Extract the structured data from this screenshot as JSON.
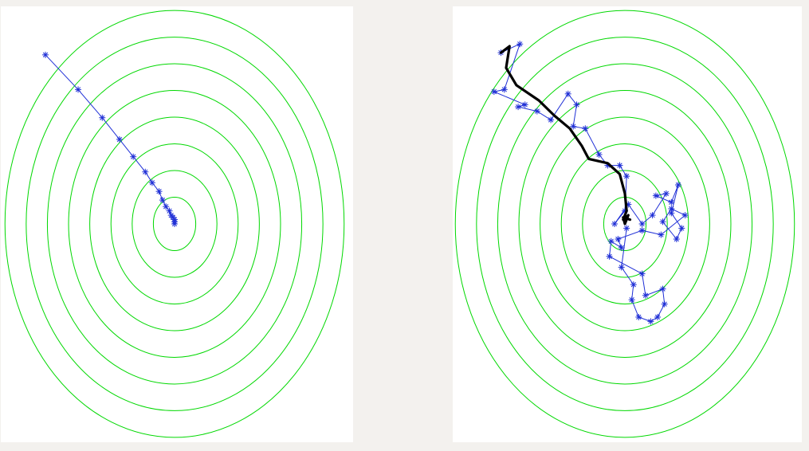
{
  "colors": {
    "background": "#f3f1ee",
    "panel": "#ffffff",
    "contour": "#00d800",
    "path": "#1f2fd6",
    "averaged_path": "#000000"
  },
  "chart_data": [
    {
      "type": "contour-path",
      "name": "batch-gradient-descent",
      "title": "",
      "xlabel": "",
      "ylabel": "",
      "xlim": [
        -1,
        1
      ],
      "ylim": [
        -1,
        1
      ],
      "grid": false,
      "minimum": [
        0,
        0
      ],
      "contour_levels": [
        0.12,
        0.24,
        0.36,
        0.48,
        0.6,
        0.72,
        0.84,
        0.96
      ],
      "series": [
        {
          "name": "iterates",
          "marker": "asterisk",
          "points": [
            [
              -0.75,
              0.78
            ],
            [
              -0.56,
              0.62
            ],
            [
              -0.42,
              0.49
            ],
            [
              -0.32,
              0.39
            ],
            [
              -0.24,
              0.31
            ],
            [
              -0.17,
              0.24
            ],
            [
              -0.13,
              0.19
            ],
            [
              -0.09,
              0.15
            ],
            [
              -0.07,
              0.11
            ],
            [
              -0.05,
              0.08
            ],
            [
              -0.03,
              0.06
            ],
            [
              -0.02,
              0.04
            ],
            [
              -0.01,
              0.03
            ],
            [
              0.0,
              0.02
            ],
            [
              0.0,
              0.01
            ],
            [
              0.0,
              0.0
            ]
          ]
        }
      ]
    },
    {
      "type": "contour-path",
      "name": "stochastic-gradient-descent",
      "title": "",
      "xlabel": "",
      "ylabel": "",
      "xlim": [
        -1,
        1
      ],
      "ylim": [
        -1,
        1
      ],
      "grid": false,
      "minimum": [
        0,
        0
      ],
      "contour_levels": [
        0.12,
        0.24,
        0.36,
        0.48,
        0.6,
        0.72,
        0.84,
        0.96
      ],
      "series": [
        {
          "name": "iterates",
          "marker": "asterisk",
          "points": [
            [
              -0.72,
              0.79
            ],
            [
              -0.61,
              0.83
            ],
            [
              -0.7,
              0.62
            ],
            [
              -0.76,
              0.61
            ],
            [
              -0.58,
              0.55
            ],
            [
              -0.62,
              0.54
            ],
            [
              -0.51,
              0.52
            ],
            [
              -0.43,
              0.48
            ],
            [
              -0.33,
              0.6
            ],
            [
              -0.28,
              0.55
            ],
            [
              -0.3,
              0.45
            ],
            [
              -0.23,
              0.44
            ],
            [
              -0.15,
              0.32
            ],
            [
              -0.1,
              0.27
            ],
            [
              -0.03,
              0.27
            ],
            [
              0.01,
              0.22
            ],
            [
              0.0,
              0.06
            ],
            [
              -0.06,
              0.0
            ],
            [
              0.02,
              0.09
            ],
            [
              0.1,
              0.0
            ],
            [
              0.16,
              0.04
            ],
            [
              0.24,
              0.14
            ],
            [
              0.18,
              0.13
            ],
            [
              0.27,
              0.1
            ],
            [
              0.31,
              0.18
            ],
            [
              0.27,
              0.05
            ],
            [
              0.33,
              -0.02
            ],
            [
              0.3,
              -0.07
            ],
            [
              0.22,
              0.01
            ],
            [
              0.27,
              0.07
            ],
            [
              0.35,
              0.04
            ],
            [
              0.21,
              -0.05
            ],
            [
              0.1,
              -0.03
            ],
            [
              -0.04,
              -0.07
            ],
            [
              -0.02,
              -0.11
            ],
            [
              -0.08,
              -0.08
            ],
            [
              -0.09,
              -0.15
            ],
            [
              0.1,
              -0.23
            ],
            [
              0.12,
              -0.33
            ],
            [
              0.22,
              -0.3
            ],
            [
              0.23,
              -0.37
            ],
            [
              0.19,
              -0.43
            ],
            [
              0.15,
              -0.45
            ],
            [
              0.08,
              -0.43
            ],
            [
              0.04,
              -0.35
            ],
            [
              0.05,
              -0.28
            ],
            [
              -0.02,
              -0.2
            ],
            [
              0.01,
              -0.02
            ]
          ]
        },
        {
          "name": "averaged",
          "marker": "none",
          "points": [
            [
              -0.72,
              0.79
            ],
            [
              -0.67,
              0.82
            ],
            [
              -0.69,
              0.72
            ],
            [
              -0.63,
              0.64
            ],
            [
              -0.5,
              0.57
            ],
            [
              -0.41,
              0.5
            ],
            [
              -0.32,
              0.44
            ],
            [
              -0.25,
              0.36
            ],
            [
              -0.21,
              0.3
            ],
            [
              -0.1,
              0.28
            ],
            [
              -0.03,
              0.23
            ],
            [
              0.0,
              0.14
            ],
            [
              0.01,
              0.06
            ],
            [
              -0.01,
              0.02
            ],
            [
              0.02,
              0.04
            ],
            [
              0.0,
              0.0
            ],
            [
              -0.01,
              0.03
            ],
            [
              0.03,
              0.02
            ]
          ]
        }
      ]
    }
  ]
}
